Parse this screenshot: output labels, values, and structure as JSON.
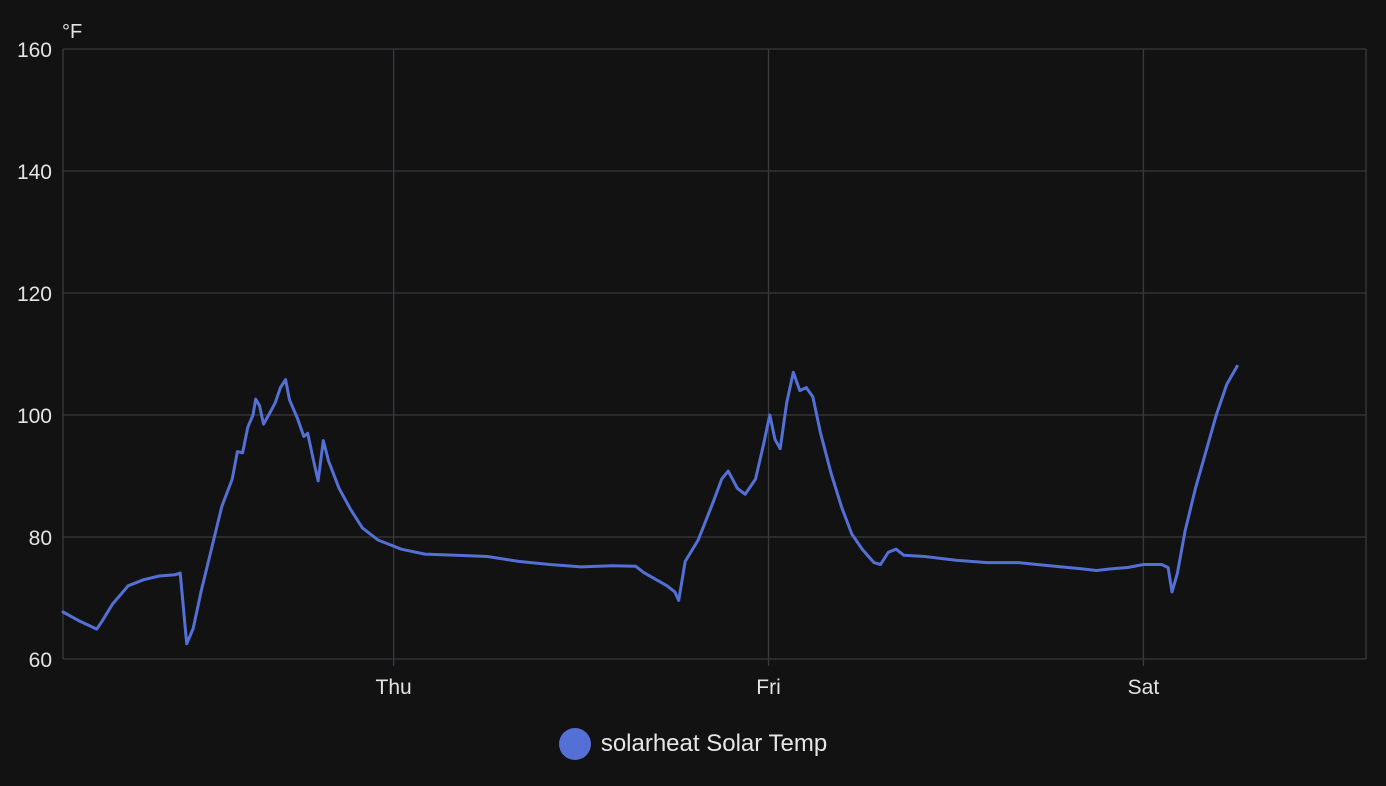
{
  "colors": {
    "background": "#121213",
    "grid": "#3a3a3c",
    "series": "#5470d6"
  },
  "chart_data": {
    "type": "line",
    "title": "",
    "ylabel": "°F",
    "xlabel": "",
    "ylim": [
      60,
      160
    ],
    "yticks": [
      60,
      80,
      100,
      120,
      140,
      160
    ],
    "xlim": [
      "Wed 02:50",
      "Sat 14:15"
    ],
    "xticks": [
      {
        "label": "Thu",
        "at": "Thu 00:00"
      },
      {
        "label": "Fri",
        "at": "Fri 00:00"
      },
      {
        "label": "Sat",
        "at": "Sat 00:00"
      }
    ],
    "grid": true,
    "legend_position": "bottom-center",
    "series": [
      {
        "name": "solarheat Solar Temp",
        "color": "#5470d6",
        "points": [
          [
            "Wed 02:50",
            67.7
          ],
          [
            "Wed 03:50",
            66.3
          ],
          [
            "Wed 05:00",
            64.9
          ],
          [
            "Wed 05:20",
            66.2
          ],
          [
            "Wed 06:00",
            69.0
          ],
          [
            "Wed 07:00",
            72.0
          ],
          [
            "Wed 08:00",
            73.0
          ],
          [
            "Wed 09:00",
            73.6
          ],
          [
            "Wed 10:00",
            73.8
          ],
          [
            "Wed 10:20",
            74.1
          ],
          [
            "Wed 10:45",
            62.5
          ],
          [
            "Wed 11:10",
            65.0
          ],
          [
            "Wed 11:40",
            71.0
          ],
          [
            "Wed 12:20",
            78.0
          ],
          [
            "Wed 13:00",
            85.0
          ],
          [
            "Wed 13:40",
            89.5
          ],
          [
            "Wed 14:00",
            94.0
          ],
          [
            "Wed 14:20",
            93.8
          ],
          [
            "Wed 14:40",
            98.0
          ],
          [
            "Wed 15:00",
            100.0
          ],
          [
            "Wed 15:10",
            102.6
          ],
          [
            "Wed 15:25",
            101.5
          ],
          [
            "Wed 15:40",
            98.5
          ],
          [
            "Wed 16:00",
            100.0
          ],
          [
            "Wed 16:25",
            102.0
          ],
          [
            "Wed 16:45",
            104.5
          ],
          [
            "Wed 17:05",
            105.8
          ],
          [
            "Wed 17:20",
            102.5
          ],
          [
            "Wed 17:50",
            99.5
          ],
          [
            "Wed 18:15",
            96.5
          ],
          [
            "Wed 18:30",
            97.0
          ],
          [
            "Wed 18:50",
            93.0
          ],
          [
            "Wed 19:10",
            89.2
          ],
          [
            "Wed 19:30",
            95.8
          ],
          [
            "Wed 19:50",
            92.5
          ],
          [
            "Wed 20:30",
            88.0
          ],
          [
            "Wed 21:15",
            84.5
          ],
          [
            "Wed 22:00",
            81.5
          ],
          [
            "Wed 23:00",
            79.5
          ],
          [
            "Thu 00:30",
            78.0
          ],
          [
            "Thu 02:00",
            77.2
          ],
          [
            "Thu 04:00",
            77.0
          ],
          [
            "Thu 06:00",
            76.8
          ],
          [
            "Thu 08:00",
            76.0
          ],
          [
            "Thu 10:00",
            75.5
          ],
          [
            "Thu 12:00",
            75.1
          ],
          [
            "Thu 14:00",
            75.3
          ],
          [
            "Thu 15:30",
            75.2
          ],
          [
            "Thu 16:00",
            74.2
          ],
          [
            "Thu 17:30",
            72.0
          ],
          [
            "Thu 18:00",
            71.0
          ],
          [
            "Thu 18:15",
            69.6
          ],
          [
            "Thu 18:40",
            76.0
          ],
          [
            "Thu 19:30",
            79.5
          ],
          [
            "Thu 20:30",
            86.0
          ],
          [
            "Thu 21:00",
            89.5
          ],
          [
            "Thu 21:25",
            90.8
          ],
          [
            "Thu 22:00",
            88.0
          ],
          [
            "Thu 22:30",
            87.0
          ],
          [
            "Thu 23:10",
            89.5
          ],
          [
            "Thu 23:40",
            95.0
          ],
          [
            "Fri 00:05",
            100.0
          ],
          [
            "Fri 00:25",
            96.0
          ],
          [
            "Fri 00:45",
            94.5
          ],
          [
            "Fri 01:10",
            102.0
          ],
          [
            "Fri 01:35",
            107.0
          ],
          [
            "Fri 02:00",
            104.0
          ],
          [
            "Fri 02:25",
            104.5
          ],
          [
            "Fri 02:50",
            103.0
          ],
          [
            "Fri 03:20",
            97.0
          ],
          [
            "Fri 04:00",
            90.5
          ],
          [
            "Fri 04:40",
            85.0
          ],
          [
            "Fri 05:20",
            80.5
          ],
          [
            "Fri 06:00",
            78.0
          ],
          [
            "Fri 06:45",
            75.8
          ],
          [
            "Fri 07:10",
            75.5
          ],
          [
            "Fri 07:40",
            77.5
          ],
          [
            "Fri 08:10",
            78.0
          ],
          [
            "Fri 08:40",
            77.0
          ],
          [
            "Fri 10:00",
            76.8
          ],
          [
            "Fri 12:00",
            76.2
          ],
          [
            "Fri 14:00",
            75.8
          ],
          [
            "Fri 16:00",
            75.8
          ],
          [
            "Fri 18:00",
            75.3
          ],
          [
            "Fri 20:00",
            74.8
          ],
          [
            "Fri 21:00",
            74.5
          ],
          [
            "Fri 22:00",
            74.8
          ],
          [
            "Fri 23:00",
            75.0
          ],
          [
            "Fri 24:00",
            75.5
          ],
          [
            "Sat 01:10",
            75.5
          ],
          [
            "Sat 01:35",
            75.0
          ],
          [
            "Sat 01:50",
            71.0
          ],
          [
            "Sat 02:10",
            74.0
          ],
          [
            "Sat 02:40",
            81.0
          ],
          [
            "Sat 03:20",
            88.0
          ],
          [
            "Sat 04:00",
            94.0
          ],
          [
            "Sat 04:40",
            100.0
          ],
          [
            "Sat 05:20",
            105.0
          ],
          [
            "Sat 06:00",
            108.0
          ]
        ]
      }
    ]
  },
  "chart_labels": {
    "ylabel": "°F",
    "legend_label": "solarheat Solar Temp"
  }
}
